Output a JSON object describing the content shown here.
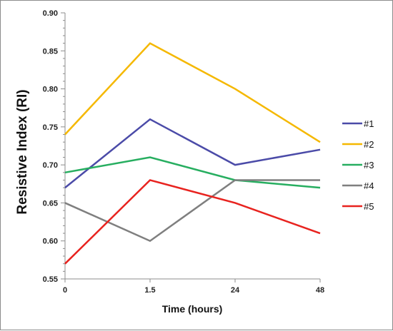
{
  "chart_data": {
    "type": "line",
    "xlabel": "Time (hours)",
    "ylabel": "Resistive Index (RI)",
    "categories": [
      "0",
      "1.5",
      "24",
      "48"
    ],
    "ylim": [
      0.55,
      0.9
    ],
    "y_ticks": [
      "0.55",
      "0.60",
      "0.65",
      "0.70",
      "0.75",
      "0.80",
      "0.85",
      "0.90"
    ],
    "grid": false,
    "legend_position": "right",
    "series": [
      {
        "name": "#1",
        "color": "#4b4ba8",
        "values": [
          0.67,
          0.76,
          0.7,
          0.72
        ]
      },
      {
        "name": "#2",
        "color": "#f5b800",
        "values": [
          0.74,
          0.86,
          0.8,
          0.73
        ]
      },
      {
        "name": "#3",
        "color": "#27ae60",
        "values": [
          0.69,
          0.71,
          0.68,
          0.67
        ]
      },
      {
        "name": "#4",
        "color": "#7f7f7f",
        "values": [
          0.65,
          0.6,
          0.68,
          0.68
        ]
      },
      {
        "name": "#5",
        "color": "#e8231f",
        "values": [
          0.57,
          0.68,
          0.65,
          0.61
        ]
      }
    ]
  }
}
